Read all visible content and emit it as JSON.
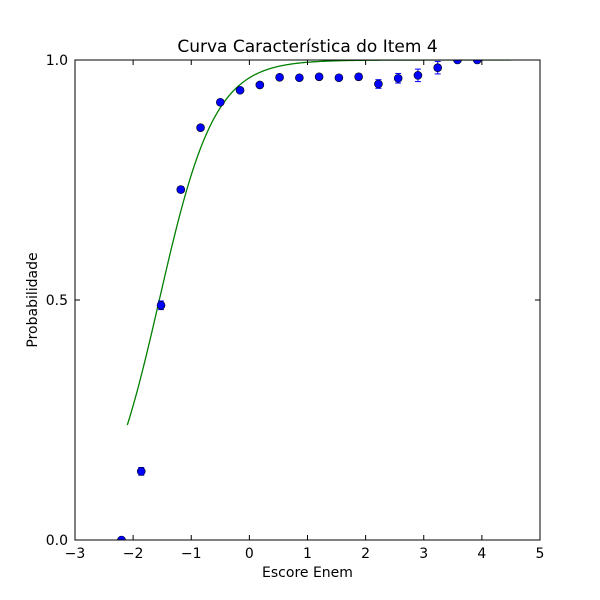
{
  "chart_data": {
    "type": "scatter",
    "title": "Curva Característica do Item 4",
    "xlabel": "Escore Enem",
    "ylabel": "Probabilidade",
    "xlim": [
      -3,
      5
    ],
    "ylim": [
      0.0,
      1.0
    ],
    "xticks": [
      -3,
      -2,
      -1,
      0,
      1,
      2,
      3,
      4,
      5
    ],
    "xtick_labels": [
      "−3",
      "−2",
      "−1",
      "0",
      "1",
      "2",
      "3",
      "4",
      "5"
    ],
    "yticks": [
      0.0,
      0.5,
      1.0
    ],
    "ytick_labels": [
      "0.0",
      "0.5",
      "1.0"
    ],
    "grid": false,
    "legend": "none",
    "series": [
      {
        "kind": "errorbar-points",
        "color": "#0000ff",
        "x": [
          -2.2,
          -1.86,
          -1.52,
          -1.18,
          -0.84,
          -0.5,
          -0.16,
          0.18,
          0.52,
          0.86,
          1.2,
          1.54,
          1.88,
          2.22,
          2.56,
          2.9,
          3.24,
          3.58,
          3.92
        ],
        "y": [
          0.0,
          0.143,
          0.489,
          0.73,
          0.859,
          0.912,
          0.937,
          0.948,
          0.964,
          0.963,
          0.965,
          0.963,
          0.965,
          0.95,
          0.962,
          0.968,
          0.984,
          1.0,
          1.0
        ],
        "yerr": [
          0.0,
          0.008,
          0.009,
          0.006,
          0.005,
          0.004,
          0.004,
          0.004,
          0.004,
          0.004,
          0.004,
          0.005,
          0.006,
          0.009,
          0.01,
          0.013,
          0.013,
          0.0,
          0.0
        ]
      },
      {
        "kind": "logistic-curve",
        "color": "#008000",
        "params": {
          "a": 2.1,
          "b": -1.55,
          "c": 0.0
        },
        "x_range": [
          -2.1,
          4.5
        ]
      }
    ]
  }
}
